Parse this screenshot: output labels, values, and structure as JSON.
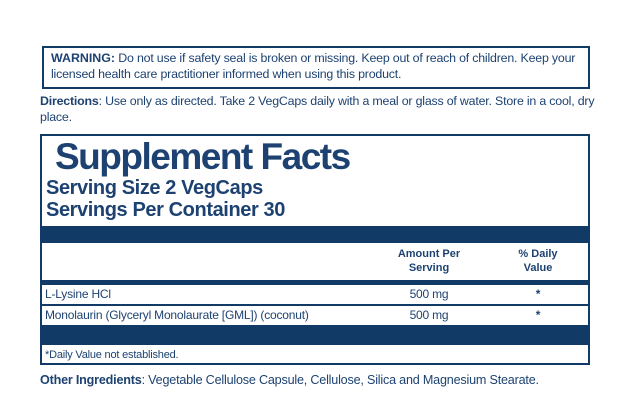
{
  "colors": {
    "navy": "#123a66",
    "text_navy": "#1d4271",
    "background": "#ffffff"
  },
  "warning": {
    "label": "WARNING:",
    "text": " Do not use if safety seal is broken or missing. Keep out of reach of children. Keep your licensed health care practitioner informed when using this product."
  },
  "directions": {
    "label": "Directions",
    "text": ": Use only as directed. Take 2 VegCaps daily with a meal or glass of water. Store in a cool, dry place."
  },
  "supplement_facts": {
    "title": "Supplement Facts",
    "serving_size": "Serving Size 2 VegCaps",
    "servings_per_container": "Servings Per Container 30",
    "columns": {
      "amount": "Amount Per Serving",
      "daily_value": "% Daily Value"
    },
    "rows": [
      {
        "name": "L-Lysine HCl",
        "amount": "500 mg",
        "daily_value": "*"
      },
      {
        "name": "Monolaurin (Glyceryl Monolaurate [GML]) (coconut)",
        "amount": "500 mg",
        "daily_value": "*"
      }
    ],
    "footnote": "*Daily Value not established."
  },
  "other_ingredients": {
    "label": "Other Ingredients",
    "text": ": Vegetable Cellulose Capsule, Cellulose, Silica and Magnesium Stearate."
  }
}
